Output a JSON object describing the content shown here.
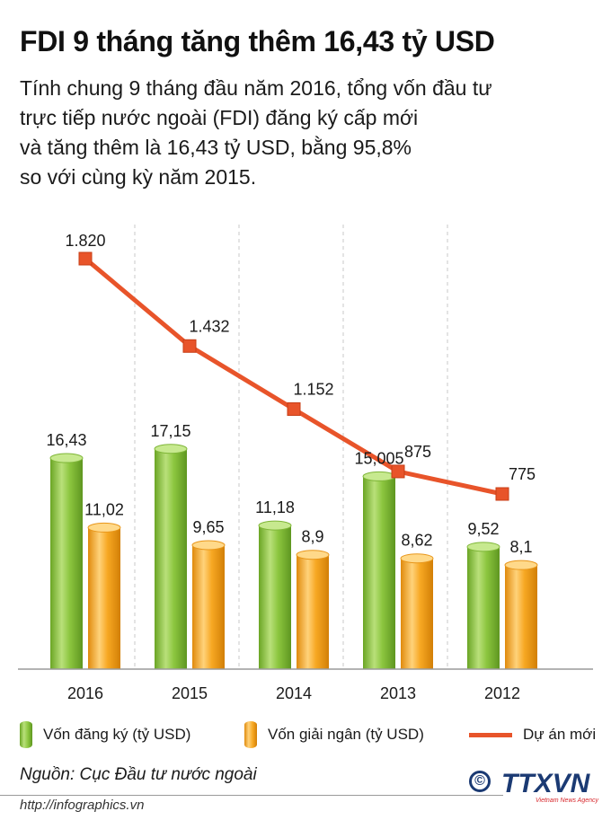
{
  "header": {
    "title": "FDI 9 tháng tăng thêm 16,43 tỷ USD",
    "subtitle_lines": [
      "Tính chung 9 tháng đầu năm 2016, tổng vốn đầu tư",
      "trực tiếp nước ngoài (FDI) đăng ký cấp mới",
      "và tăng thêm là 16,43 tỷ USD, bằng 95,8%",
      "so với cùng kỳ năm 2015."
    ]
  },
  "chart_data": {
    "type": "bar",
    "categories": [
      "2016",
      "2015",
      "2014",
      "2013",
      "2012"
    ],
    "series": [
      {
        "name": "Vốn đăng ký (tỷ USD)",
        "type": "bar",
        "color": "#8cc63f",
        "values": [
          16.43,
          17.15,
          11.18,
          15.005,
          9.52
        ],
        "labels": [
          "16,43",
          "17,15",
          "11,18",
          "15,005",
          "9,52"
        ]
      },
      {
        "name": "Vốn giải ngân (tỷ USD)",
        "type": "bar",
        "color": "#f7a823",
        "values": [
          11.02,
          9.65,
          8.9,
          8.62,
          8.1
        ],
        "labels": [
          "11,02",
          "9,65",
          "8,9",
          "8,62",
          "8,1"
        ]
      },
      {
        "name": "Dự án mới",
        "type": "line",
        "color": "#e8542a",
        "values": [
          1820,
          1432,
          1152,
          875,
          775
        ],
        "labels": [
          "1.820",
          "1.432",
          "1.152",
          "875",
          "775"
        ]
      }
    ],
    "grid": "vertical-dashed"
  },
  "footer": {
    "source": "Nguồn: Cục Đầu tư nước ngoài",
    "url": "http://infographics.vn",
    "copyright_symbol": "©",
    "logo_text": "TTXVN",
    "logo_subtext": "Vietnam News Agency"
  },
  "colors": {
    "green": "#8cc63f",
    "orange": "#f7a823",
    "line": "#e8542a",
    "logo_blue": "#1b3a73",
    "logo_red": "#d7262b"
  }
}
